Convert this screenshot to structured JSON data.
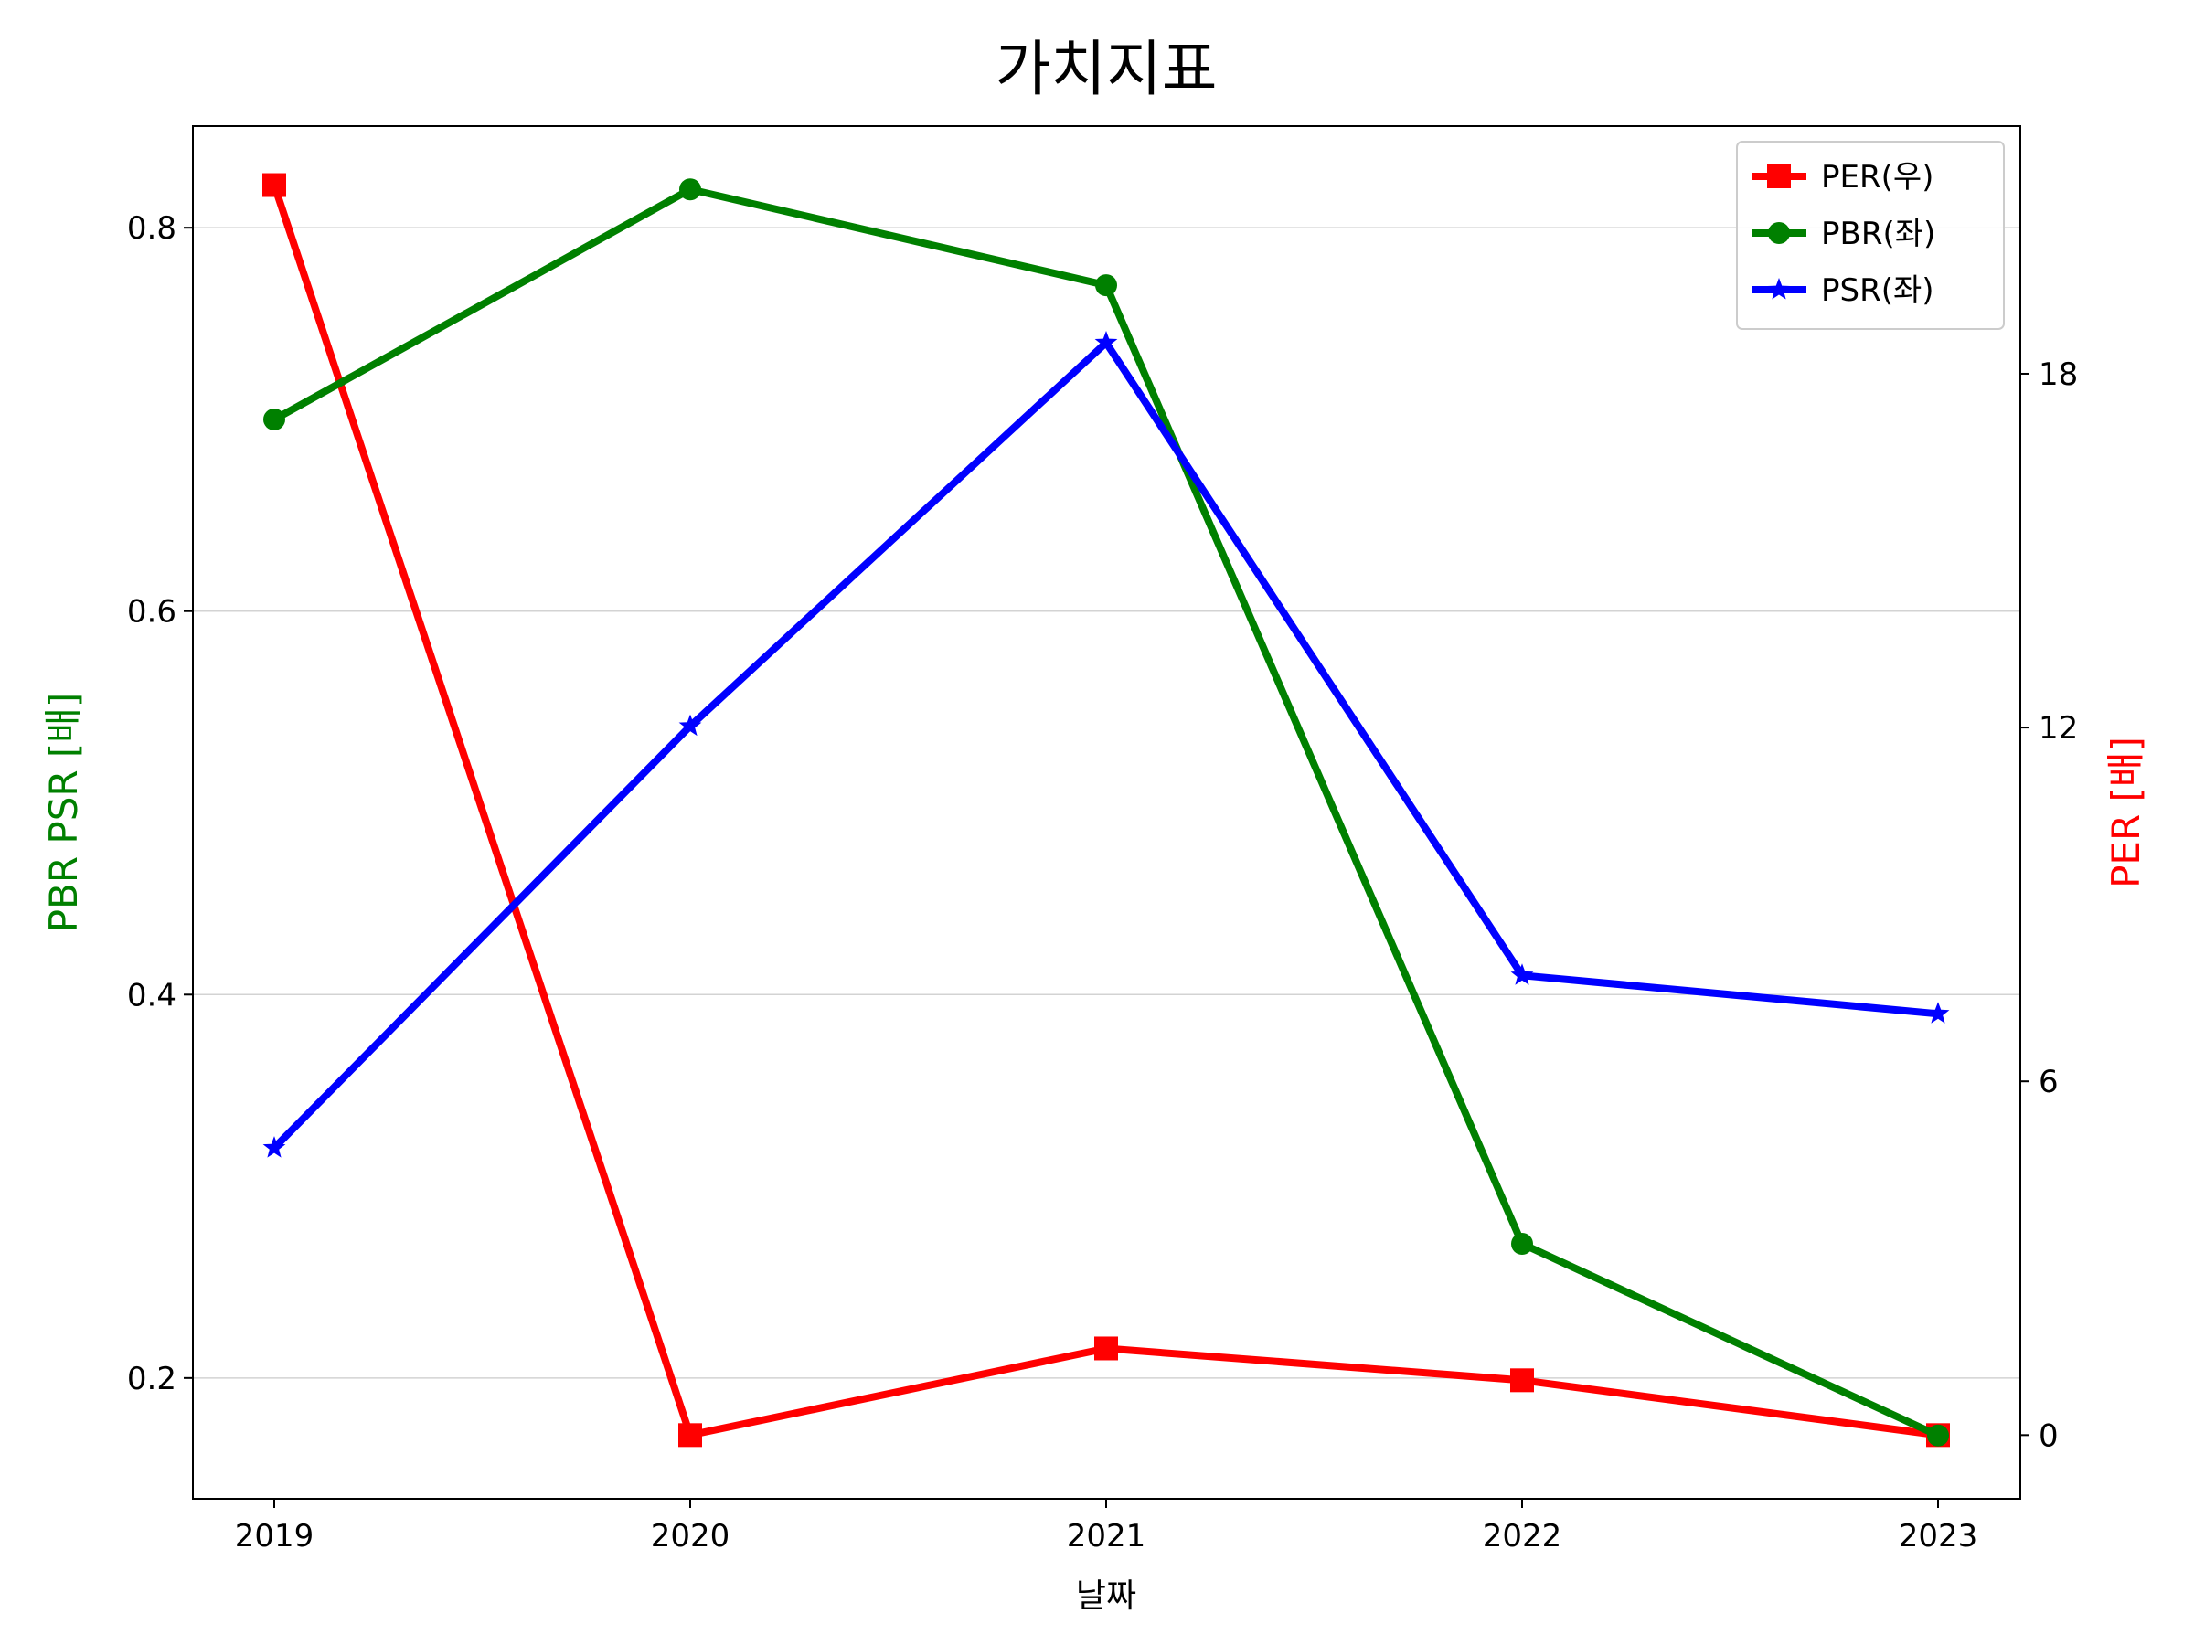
{
  "chart_data": {
    "type": "line",
    "title": "가치지표",
    "xlabel": "날짜",
    "ylabel_left": "PBR PSR [배]",
    "ylabel_right": "PER [배]",
    "categories": [
      "2019",
      "2020",
      "2021",
      "2022",
      "2023"
    ],
    "ylim_left": [
      0.137,
      0.853
    ],
    "ylim_right": [
      -1.08,
      22.2
    ],
    "yticks_left": [
      0.2,
      0.4,
      0.6,
      0.8
    ],
    "yticks_left_labels": [
      "0.2",
      "0.4",
      "0.6",
      "0.8"
    ],
    "yticks_right": [
      0,
      6,
      12,
      18
    ],
    "yticks_right_labels": [
      "0",
      "6",
      "12",
      "18"
    ],
    "grid": "horizontal (left axis)",
    "legend_position": "top-right",
    "series": [
      {
        "name": "PER(우)",
        "axis": "right",
        "color": "#ff0000",
        "marker": "square",
        "values": [
          21.2,
          0.0,
          1.47,
          0.93,
          0.0
        ]
      },
      {
        "name": "PBR(좌)",
        "axis": "left",
        "color": "#008000",
        "marker": "circle",
        "values": [
          0.7,
          0.82,
          0.77,
          0.27,
          0.17
        ]
      },
      {
        "name": "PSR(좌)",
        "axis": "left",
        "color": "#0000ff",
        "marker": "star",
        "values": [
          0.32,
          0.54,
          0.74,
          0.41,
          0.39
        ]
      }
    ]
  }
}
